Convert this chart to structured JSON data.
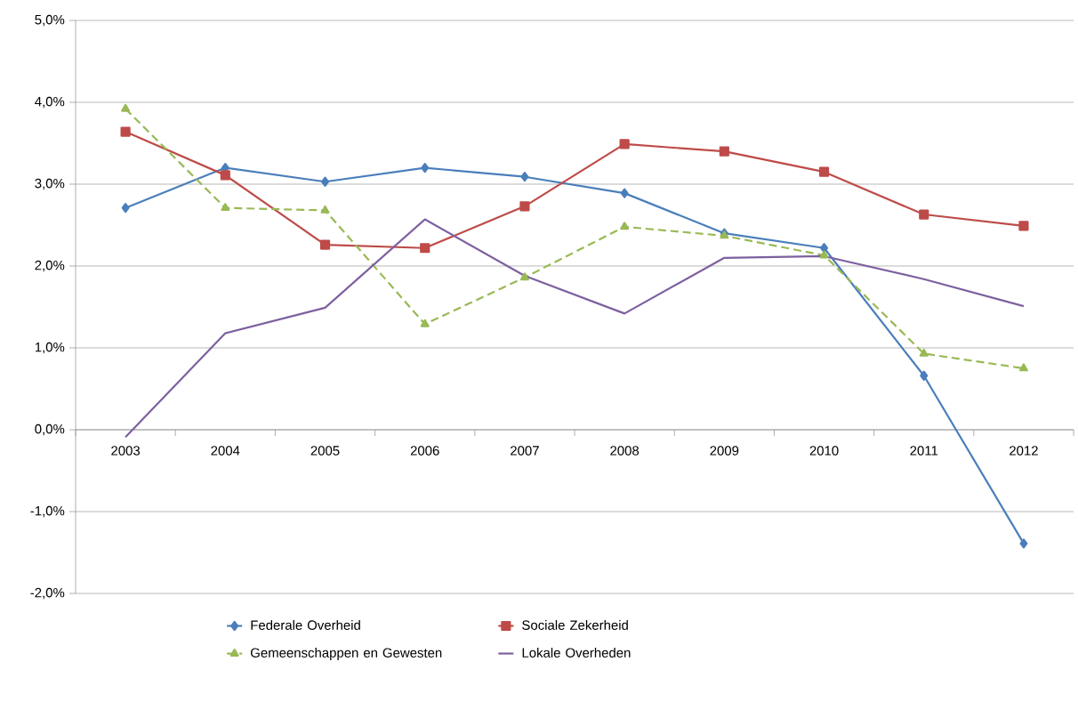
{
  "chart_data": {
    "type": "line",
    "categories": [
      "2003",
      "2004",
      "2005",
      "2006",
      "2007",
      "2008",
      "2009",
      "2010",
      "2011",
      "2012"
    ],
    "series": [
      {
        "name": "Federale Overheid",
        "color": "#4a7ebb",
        "marker": "diamond",
        "line_style": "solid",
        "values": [
          2.71,
          3.2,
          3.03,
          3.2,
          3.09,
          2.89,
          2.4,
          2.22,
          0.66,
          -1.39
        ]
      },
      {
        "name": "Sociale Zekerheid",
        "color": "#be4b48",
        "marker": "square",
        "line_style": "solid",
        "values": [
          3.64,
          3.11,
          2.26,
          2.22,
          2.73,
          3.49,
          3.4,
          3.15,
          2.63,
          2.49
        ]
      },
      {
        "name": "Gemeenschappen en Gewesten",
        "color": "#98b954",
        "marker": "triangle",
        "line_style": "dashed",
        "values": [
          3.92,
          2.71,
          2.68,
          1.29,
          1.86,
          2.48,
          2.37,
          2.13,
          0.93,
          0.75
        ]
      },
      {
        "name": "Lokale Overheden",
        "color": "#7d60a0",
        "marker": "none",
        "line_style": "solid",
        "values": [
          -0.09,
          1.18,
          1.49,
          2.57,
          1.88,
          1.42,
          2.1,
          2.12,
          1.84,
          1.51
        ]
      }
    ],
    "ylim": [
      -2,
      5
    ],
    "yticks": [
      {
        "value": -2,
        "label": "-2,0%"
      },
      {
        "value": -1,
        "label": "-1,0%"
      },
      {
        "value": 0,
        "label": "0,0%"
      },
      {
        "value": 1,
        "label": "1,0%"
      },
      {
        "value": 2,
        "label": "2,0%"
      },
      {
        "value": 3,
        "label": "3,0%"
      },
      {
        "value": 4,
        "label": "4,0%"
      },
      {
        "value": 5,
        "label": "5,0%"
      }
    ],
    "grid": "y",
    "legend": "bottom"
  }
}
